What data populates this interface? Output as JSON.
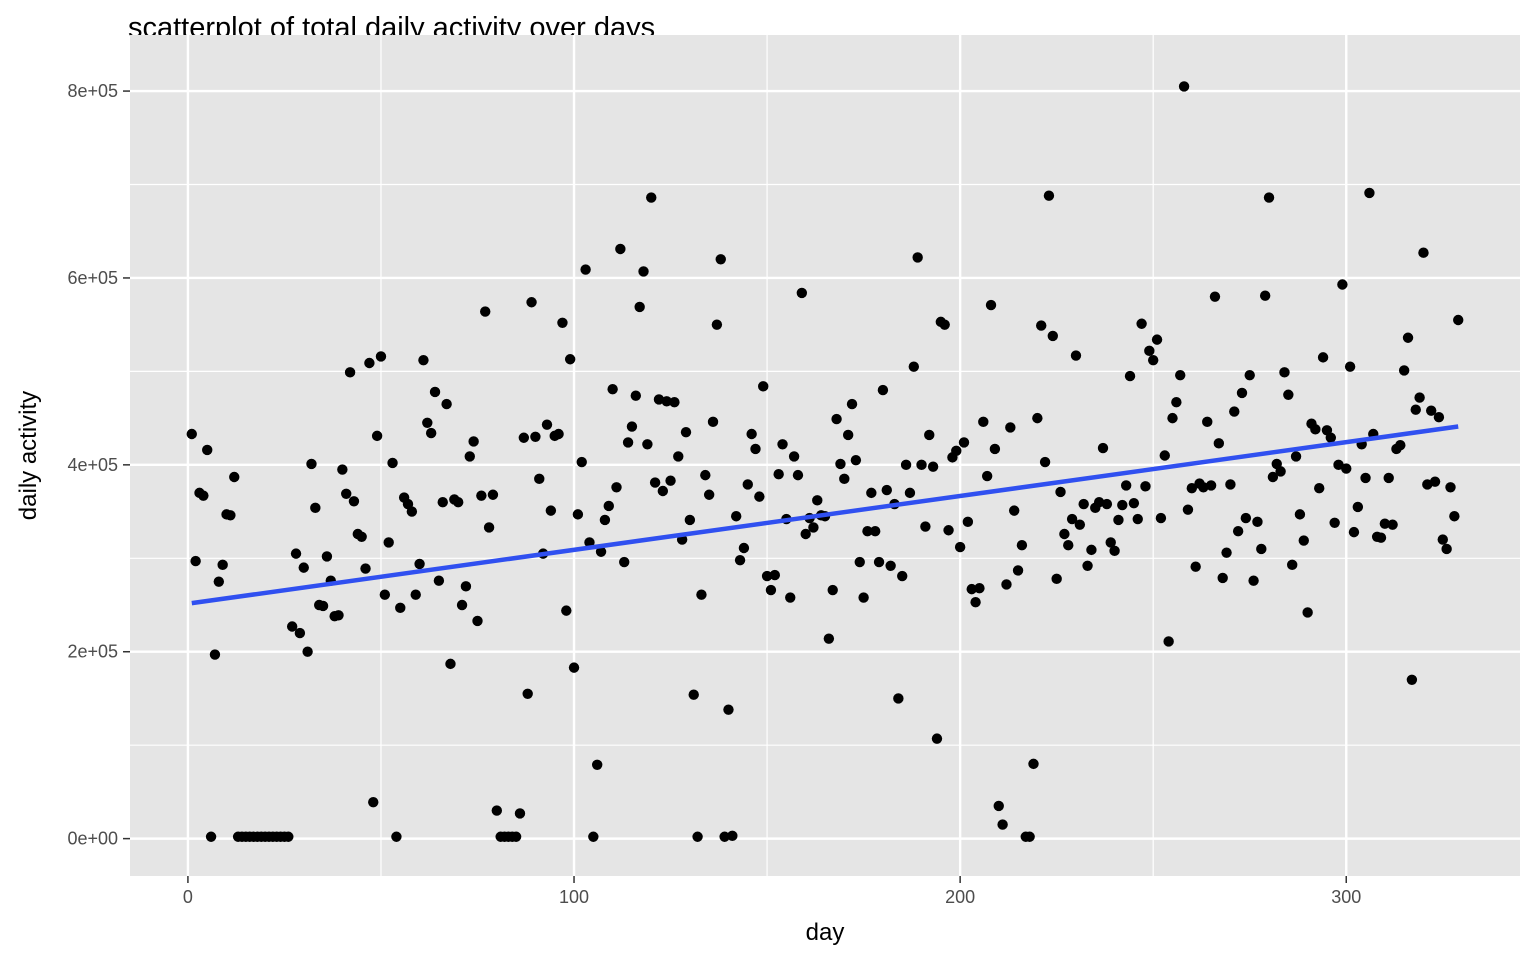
{
  "chart_data": {
    "type": "scatter",
    "title": "scatterplot of total daily activity over days",
    "xlabel": "day",
    "ylabel": "daily activity",
    "xlim": [
      -15,
      345
    ],
    "ylim": [
      -40000,
      860000
    ],
    "x_ticks": [
      0,
      100,
      200,
      300
    ],
    "x_tick_labels": [
      "0",
      "100",
      "200",
      "300"
    ],
    "y_ticks": [
      0,
      200000,
      400000,
      600000,
      800000
    ],
    "y_tick_labels": [
      "0e+00",
      "2e+05",
      "4e+05",
      "6e+05",
      "8e+05"
    ],
    "grid": true,
    "legend": "none",
    "colors": {
      "panel": "#e5e5e5",
      "grid": "#ffffff",
      "point": "#000000",
      "trend": "#3050f0"
    },
    "trend_line": {
      "method": "linear",
      "x": [
        1,
        329
      ],
      "y": [
        252000,
        441000
      ]
    },
    "points": [
      [
        1,
        433000
      ],
      [
        2,
        297000
      ],
      [
        3,
        370000
      ],
      [
        4,
        367000
      ],
      [
        5,
        416000
      ],
      [
        6,
        2000
      ],
      [
        7,
        197000
      ],
      [
        8,
        275000
      ],
      [
        9,
        293000
      ],
      [
        10,
        347000
      ],
      [
        11,
        346000
      ],
      [
        12,
        387000
      ],
      [
        13,
        2000
      ],
      [
        14,
        2000
      ],
      [
        15,
        2000
      ],
      [
        16,
        2000
      ],
      [
        17,
        2000
      ],
      [
        18,
        2000
      ],
      [
        19,
        2000
      ],
      [
        20,
        2000
      ],
      [
        21,
        2000
      ],
      [
        22,
        2000
      ],
      [
        23,
        2000
      ],
      [
        24,
        2000
      ],
      [
        25,
        2000
      ],
      [
        26,
        2000
      ],
      [
        27,
        227000
      ],
      [
        28,
        305000
      ],
      [
        29,
        220000
      ],
      [
        30,
        290000
      ],
      [
        31,
        200000
      ],
      [
        32,
        401000
      ],
      [
        33,
        354000
      ],
      [
        34,
        250000
      ],
      [
        35,
        249000
      ],
      [
        36,
        302000
      ],
      [
        37,
        276000
      ],
      [
        38,
        238000
      ],
      [
        39,
        239000
      ],
      [
        40,
        395000
      ],
      [
        41,
        369000
      ],
      [
        42,
        499000
      ],
      [
        43,
        361000
      ],
      [
        44,
        326000
      ],
      [
        45,
        323000
      ],
      [
        46,
        289000
      ],
      [
        47,
        509000
      ],
      [
        48,
        39000
      ],
      [
        49,
        431000
      ],
      [
        50,
        516000
      ],
      [
        51,
        261000
      ],
      [
        52,
        317000
      ],
      [
        53,
        402000
      ],
      [
        54,
        2000
      ],
      [
        55,
        247000
      ],
      [
        56,
        365000
      ],
      [
        57,
        358000
      ],
      [
        58,
        350000
      ],
      [
        59,
        261000
      ],
      [
        60,
        294000
      ],
      [
        61,
        512000
      ],
      [
        62,
        445000
      ],
      [
        63,
        434000
      ],
      [
        64,
        478000
      ],
      [
        65,
        276000
      ],
      [
        66,
        360000
      ],
      [
        67,
        465000
      ],
      [
        68,
        187000
      ],
      [
        69,
        363000
      ],
      [
        70,
        360000
      ],
      [
        71,
        250000
      ],
      [
        72,
        270000
      ],
      [
        73,
        409000
      ],
      [
        74,
        425000
      ],
      [
        75,
        233000
      ],
      [
        76,
        367000
      ],
      [
        77,
        564000
      ],
      [
        78,
        333000
      ],
      [
        79,
        368000
      ],
      [
        80,
        30000
      ],
      [
        81,
        2000
      ],
      [
        82,
        2000
      ],
      [
        83,
        2000
      ],
      [
        84,
        2000
      ],
      [
        85,
        2000
      ],
      [
        86,
        27000
      ],
      [
        87,
        429000
      ],
      [
        88,
        155000
      ],
      [
        89,
        574000
      ],
      [
        90,
        430000
      ],
      [
        91,
        385000
      ],
      [
        92,
        305000
      ],
      [
        93,
        443000
      ],
      [
        94,
        351000
      ],
      [
        95,
        431000
      ],
      [
        96,
        433000
      ],
      [
        97,
        552000
      ],
      [
        98,
        244000
      ],
      [
        99,
        513000
      ],
      [
        100,
        183000
      ],
      [
        101,
        347000
      ],
      [
        102,
        403000
      ],
      [
        103,
        609000
      ],
      [
        104,
        317000
      ],
      [
        105,
        2000
      ],
      [
        106,
        79000
      ],
      [
        107,
        307000
      ],
      [
        108,
        341000
      ],
      [
        109,
        356000
      ],
      [
        110,
        481000
      ],
      [
        111,
        376000
      ],
      [
        112,
        631000
      ],
      [
        113,
        296000
      ],
      [
        114,
        424000
      ],
      [
        115,
        441000
      ],
      [
        116,
        474000
      ],
      [
        117,
        569000
      ],
      [
        118,
        607000
      ],
      [
        119,
        422000
      ],
      [
        120,
        686000
      ],
      [
        121,
        381000
      ],
      [
        122,
        470000
      ],
      [
        123,
        372000
      ],
      [
        124,
        468000
      ],
      [
        125,
        383000
      ],
      [
        126,
        467000
      ],
      [
        127,
        409000
      ],
      [
        128,
        320000
      ],
      [
        129,
        435000
      ],
      [
        130,
        341000
      ],
      [
        131,
        154000
      ],
      [
        132,
        2000
      ],
      [
        133,
        261000
      ],
      [
        134,
        389000
      ],
      [
        135,
        368000
      ],
      [
        136,
        446000
      ],
      [
        137,
        550000
      ],
      [
        138,
        620000
      ],
      [
        139,
        2000
      ],
      [
        140,
        138000
      ],
      [
        141,
        3000
      ],
      [
        142,
        345000
      ],
      [
        143,
        298000
      ],
      [
        144,
        311000
      ],
      [
        145,
        379000
      ],
      [
        146,
        433000
      ],
      [
        147,
        417000
      ],
      [
        148,
        366000
      ],
      [
        149,
        484000
      ],
      [
        150,
        281000
      ],
      [
        151,
        266000
      ],
      [
        152,
        282000
      ],
      [
        153,
        390000
      ],
      [
        154,
        422000
      ],
      [
        155,
        342000
      ],
      [
        156,
        258000
      ],
      [
        157,
        409000
      ],
      [
        158,
        389000
      ],
      [
        159,
        584000
      ],
      [
        160,
        326000
      ],
      [
        161,
        343000
      ],
      [
        162,
        333000
      ],
      [
        163,
        362000
      ],
      [
        164,
        346000
      ],
      [
        165,
        345000
      ],
      [
        166,
        214000
      ],
      [
        167,
        266000
      ],
      [
        168,
        449000
      ],
      [
        169,
        401000
      ],
      [
        170,
        385000
      ],
      [
        171,
        432000
      ],
      [
        172,
        465000
      ],
      [
        173,
        405000
      ],
      [
        174,
        296000
      ],
      [
        175,
        258000
      ],
      [
        176,
        329000
      ],
      [
        177,
        370000
      ],
      [
        178,
        329000
      ],
      [
        179,
        296000
      ],
      [
        180,
        480000
      ],
      [
        181,
        373000
      ],
      [
        182,
        292000
      ],
      [
        183,
        358000
      ],
      [
        184,
        150000
      ],
      [
        185,
        281000
      ],
      [
        186,
        400000
      ],
      [
        187,
        370000
      ],
      [
        188,
        505000
      ],
      [
        189,
        622000
      ],
      [
        190,
        400000
      ],
      [
        191,
        334000
      ],
      [
        192,
        432000
      ],
      [
        193,
        398000
      ],
      [
        194,
        107000
      ],
      [
        195,
        553000
      ],
      [
        196,
        550000
      ],
      [
        197,
        330000
      ],
      [
        198,
        408000
      ],
      [
        199,
        415000
      ],
      [
        200,
        312000
      ],
      [
        201,
        424000
      ],
      [
        202,
        339000
      ],
      [
        203,
        267000
      ],
      [
        204,
        253000
      ],
      [
        205,
        268000
      ],
      [
        206,
        446000
      ],
      [
        207,
        388000
      ],
      [
        208,
        571000
      ],
      [
        209,
        417000
      ],
      [
        210,
        35000
      ],
      [
        211,
        15000
      ],
      [
        212,
        272000
      ],
      [
        213,
        440000
      ],
      [
        214,
        351000
      ],
      [
        215,
        287000
      ],
      [
        216,
        314000
      ],
      [
        217,
        2000
      ],
      [
        218,
        2000
      ],
      [
        219,
        80000
      ],
      [
        220,
        450000
      ],
      [
        221,
        549000
      ],
      [
        222,
        403000
      ],
      [
        223,
        688000
      ],
      [
        224,
        538000
      ],
      [
        225,
        278000
      ],
      [
        226,
        371000
      ],
      [
        227,
        326000
      ],
      [
        228,
        314000
      ],
      [
        229,
        342000
      ],
      [
        230,
        517000
      ],
      [
        231,
        336000
      ],
      [
        232,
        358000
      ],
      [
        233,
        292000
      ],
      [
        234,
        309000
      ],
      [
        235,
        354000
      ],
      [
        236,
        360000
      ],
      [
        237,
        418000
      ],
      [
        238,
        358000
      ],
      [
        239,
        317000
      ],
      [
        240,
        308000
      ],
      [
        241,
        341000
      ],
      [
        242,
        357000
      ],
      [
        243,
        378000
      ],
      [
        244,
        495000
      ],
      [
        245,
        359000
      ],
      [
        246,
        342000
      ],
      [
        247,
        551000
      ],
      [
        248,
        377000
      ],
      [
        249,
        522000
      ],
      [
        250,
        512000
      ],
      [
        251,
        534000
      ],
      [
        252,
        343000
      ],
      [
        253,
        410000
      ],
      [
        254,
        211000
      ],
      [
        255,
        450000
      ],
      [
        256,
        467000
      ],
      [
        257,
        496000
      ],
      [
        258,
        805000
      ],
      [
        259,
        352000
      ],
      [
        260,
        375000
      ],
      [
        261,
        291000
      ],
      [
        262,
        380000
      ],
      [
        263,
        376000
      ],
      [
        264,
        446000
      ],
      [
        265,
        378000
      ],
      [
        266,
        580000
      ],
      [
        267,
        423000
      ],
      [
        268,
        279000
      ],
      [
        269,
        306000
      ],
      [
        270,
        379000
      ],
      [
        271,
        457000
      ],
      [
        272,
        329000
      ],
      [
        273,
        477000
      ],
      [
        274,
        343000
      ],
      [
        275,
        496000
      ],
      [
        276,
        276000
      ],
      [
        277,
        339000
      ],
      [
        278,
        310000
      ],
      [
        279,
        581000
      ],
      [
        280,
        686000
      ],
      [
        281,
        387000
      ],
      [
        282,
        401000
      ],
      [
        283,
        393000
      ],
      [
        284,
        499000
      ],
      [
        285,
        475000
      ],
      [
        286,
        293000
      ],
      [
        287,
        409000
      ],
      [
        288,
        347000
      ],
      [
        289,
        319000
      ],
      [
        290,
        242000
      ],
      [
        291,
        444000
      ],
      [
        292,
        438000
      ],
      [
        293,
        375000
      ],
      [
        294,
        515000
      ],
      [
        295,
        437000
      ],
      [
        296,
        429000
      ],
      [
        297,
        338000
      ],
      [
        298,
        400000
      ],
      [
        299,
        593000
      ],
      [
        300,
        396000
      ],
      [
        301,
        505000
      ],
      [
        302,
        328000
      ],
      [
        303,
        355000
      ],
      [
        304,
        422000
      ],
      [
        305,
        386000
      ],
      [
        306,
        691000
      ],
      [
        307,
        433000
      ],
      [
        308,
        323000
      ],
      [
        309,
        322000
      ],
      [
        310,
        337000
      ],
      [
        311,
        386000
      ],
      [
        312,
        336000
      ],
      [
        313,
        417000
      ],
      [
        314,
        421000
      ],
      [
        315,
        501000
      ],
      [
        316,
        536000
      ],
      [
        317,
        170000
      ],
      [
        318,
        459000
      ],
      [
        319,
        472000
      ],
      [
        320,
        627000
      ],
      [
        321,
        379000
      ],
      [
        322,
        458000
      ],
      [
        323,
        382000
      ],
      [
        324,
        451000
      ],
      [
        325,
        320000
      ],
      [
        326,
        310000
      ],
      [
        327,
        376000
      ],
      [
        328,
        345000
      ],
      [
        329,
        555000
      ]
    ]
  }
}
